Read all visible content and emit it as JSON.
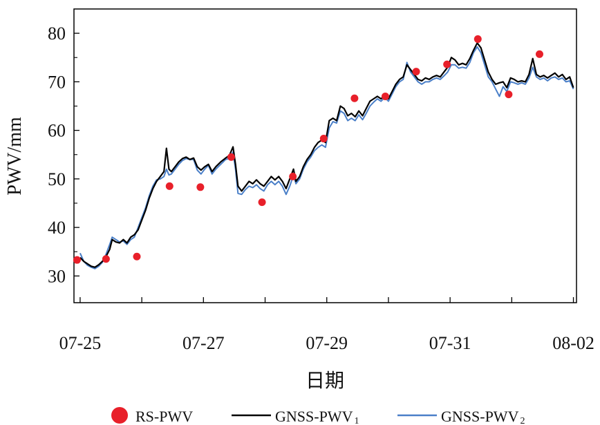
{
  "chart_data": {
    "type": "line",
    "xlabel": "日期",
    "ylabel": "PWV/mm",
    "x_tick_labels": [
      "07-25",
      "07-27",
      "07-29",
      "07-31",
      "08-02"
    ],
    "x_tick_days": [
      0,
      2,
      4,
      6,
      8
    ],
    "x_axis_start_date": "07-25",
    "xlim": [
      -0.1,
      8.05
    ],
    "y_ticks": [
      30,
      40,
      50,
      60,
      70,
      80
    ],
    "ylim": [
      24.5,
      85
    ],
    "series_colors": {
      "RS-PWV": "#e8202a",
      "GNSS-PWV1": "#000000",
      "GNSS-PWV2": "#4a7fc8"
    },
    "legend": {
      "placement": "bottom",
      "entries": [
        {
          "key": "RS-PWV",
          "label": "RS-PWV",
          "sub": "",
          "marker": "dot"
        },
        {
          "key": "GNSS-PWV1",
          "label": "GNSS-PWV",
          "sub": "1",
          "marker": "line"
        },
        {
          "key": "GNSS-PWV2",
          "label": "GNSS-PWV",
          "sub": "2",
          "marker": "line"
        }
      ]
    },
    "series": [
      {
        "name": "RS-PWV",
        "kind": "scatter",
        "points": [
          [
            -0.05,
            33.3
          ],
          [
            0.42,
            33.5
          ],
          [
            0.92,
            34.0
          ],
          [
            1.45,
            48.5
          ],
          [
            1.95,
            48.3
          ],
          [
            2.45,
            54.5
          ],
          [
            2.95,
            45.2
          ],
          [
            3.45,
            50.5
          ],
          [
            3.95,
            58.3
          ],
          [
            4.45,
            66.6
          ],
          [
            4.95,
            67.0
          ],
          [
            5.45,
            72.1
          ],
          [
            5.95,
            73.6
          ],
          [
            6.45,
            78.8
          ],
          [
            6.95,
            67.4
          ],
          [
            7.45,
            75.7
          ]
        ]
      },
      {
        "name": "GNSS-PWV1",
        "kind": "line",
        "points": [
          [
            0.0,
            33.8
          ],
          [
            0.06,
            33.0
          ],
          [
            0.12,
            32.5
          ],
          [
            0.18,
            32.0
          ],
          [
            0.24,
            31.8
          ],
          [
            0.3,
            32.3
          ],
          [
            0.36,
            33.0
          ],
          [
            0.42,
            34.0
          ],
          [
            0.48,
            35.5
          ],
          [
            0.52,
            37.5
          ],
          [
            0.58,
            37.0
          ],
          [
            0.64,
            36.8
          ],
          [
            0.7,
            37.5
          ],
          [
            0.76,
            36.8
          ],
          [
            0.82,
            38.0
          ],
          [
            0.88,
            38.5
          ],
          [
            0.94,
            39.5
          ],
          [
            1.0,
            41.5
          ],
          [
            1.06,
            43.5
          ],
          [
            1.12,
            46.0
          ],
          [
            1.18,
            48.0
          ],
          [
            1.24,
            49.5
          ],
          [
            1.3,
            50.5
          ],
          [
            1.36,
            51.5
          ],
          [
            1.4,
            56.3
          ],
          [
            1.44,
            52.0
          ],
          [
            1.48,
            51.5
          ],
          [
            1.54,
            52.5
          ],
          [
            1.6,
            53.5
          ],
          [
            1.66,
            54.2
          ],
          [
            1.72,
            54.5
          ],
          [
            1.78,
            54.0
          ],
          [
            1.84,
            54.3
          ],
          [
            1.9,
            52.5
          ],
          [
            1.96,
            51.8
          ],
          [
            2.02,
            52.5
          ],
          [
            2.08,
            53.0
          ],
          [
            2.14,
            51.5
          ],
          [
            2.2,
            52.5
          ],
          [
            2.28,
            53.5
          ],
          [
            2.36,
            54.3
          ],
          [
            2.42,
            54.8
          ],
          [
            2.48,
            56.6
          ],
          [
            2.52,
            53.0
          ],
          [
            2.56,
            48.5
          ],
          [
            2.62,
            47.5
          ],
          [
            2.68,
            48.5
          ],
          [
            2.74,
            49.5
          ],
          [
            2.8,
            49.0
          ],
          [
            2.86,
            49.8
          ],
          [
            2.92,
            49.0
          ],
          [
            2.98,
            48.5
          ],
          [
            3.04,
            49.5
          ],
          [
            3.1,
            50.5
          ],
          [
            3.16,
            49.8
          ],
          [
            3.22,
            50.5
          ],
          [
            3.28,
            49.5
          ],
          [
            3.34,
            48.0
          ],
          [
            3.4,
            50.0
          ],
          [
            3.46,
            52.0
          ],
          [
            3.5,
            49.5
          ],
          [
            3.56,
            50.5
          ],
          [
            3.62,
            52.5
          ],
          [
            3.68,
            54.0
          ],
          [
            3.74,
            55.0
          ],
          [
            3.8,
            56.5
          ],
          [
            3.86,
            57.5
          ],
          [
            3.92,
            58.0
          ],
          [
            3.98,
            57.5
          ],
          [
            4.04,
            62.0
          ],
          [
            4.1,
            62.5
          ],
          [
            4.16,
            62.0
          ],
          [
            4.22,
            65.0
          ],
          [
            4.28,
            64.5
          ],
          [
            4.34,
            63.0
          ],
          [
            4.4,
            63.5
          ],
          [
            4.46,
            62.8
          ],
          [
            4.52,
            64.0
          ],
          [
            4.58,
            63.0
          ],
          [
            4.64,
            64.5
          ],
          [
            4.7,
            66.0
          ],
          [
            4.76,
            66.5
          ],
          [
            4.82,
            67.0
          ],
          [
            4.88,
            66.5
          ],
          [
            4.94,
            67.2
          ],
          [
            5.0,
            66.5
          ],
          [
            5.06,
            68.0
          ],
          [
            5.12,
            69.5
          ],
          [
            5.18,
            70.5
          ],
          [
            5.24,
            71.0
          ],
          [
            5.3,
            73.5
          ],
          [
            5.36,
            72.5
          ],
          [
            5.42,
            71.5
          ],
          [
            5.48,
            70.5
          ],
          [
            5.54,
            70.2
          ],
          [
            5.6,
            70.8
          ],
          [
            5.66,
            70.5
          ],
          [
            5.72,
            71.0
          ],
          [
            5.78,
            71.3
          ],
          [
            5.84,
            71.0
          ],
          [
            5.9,
            72.0
          ],
          [
            5.96,
            73.0
          ],
          [
            6.02,
            75.0
          ],
          [
            6.08,
            74.5
          ],
          [
            6.14,
            73.5
          ],
          [
            6.2,
            73.8
          ],
          [
            6.26,
            73.5
          ],
          [
            6.32,
            74.8
          ],
          [
            6.38,
            76.5
          ],
          [
            6.44,
            78.0
          ],
          [
            6.5,
            77.0
          ],
          [
            6.56,
            74.5
          ],
          [
            6.62,
            72.0
          ],
          [
            6.68,
            70.5
          ],
          [
            6.74,
            69.5
          ],
          [
            6.8,
            69.8
          ],
          [
            6.86,
            70.0
          ],
          [
            6.92,
            68.8
          ],
          [
            6.98,
            70.8
          ],
          [
            7.04,
            70.5
          ],
          [
            7.1,
            70.0
          ],
          [
            7.16,
            70.2
          ],
          [
            7.22,
            70.0
          ],
          [
            7.28,
            71.5
          ],
          [
            7.34,
            74.8
          ],
          [
            7.4,
            71.5
          ],
          [
            7.46,
            71.0
          ],
          [
            7.52,
            71.3
          ],
          [
            7.58,
            70.8
          ],
          [
            7.64,
            71.3
          ],
          [
            7.7,
            71.8
          ],
          [
            7.76,
            71.0
          ],
          [
            7.82,
            71.5
          ],
          [
            7.88,
            70.5
          ],
          [
            7.94,
            71.0
          ],
          [
            8.0,
            68.8
          ]
        ]
      },
      {
        "name": "GNSS-PWV2",
        "kind": "line",
        "points": [
          [
            0.0,
            34.7
          ],
          [
            0.06,
            33.0
          ],
          [
            0.12,
            32.2
          ],
          [
            0.18,
            31.8
          ],
          [
            0.24,
            31.5
          ],
          [
            0.3,
            32.0
          ],
          [
            0.36,
            32.8
          ],
          [
            0.42,
            34.5
          ],
          [
            0.48,
            36.5
          ],
          [
            0.52,
            38.0
          ],
          [
            0.58,
            37.5
          ],
          [
            0.64,
            37.0
          ],
          [
            0.7,
            37.2
          ],
          [
            0.76,
            36.5
          ],
          [
            0.82,
            37.5
          ],
          [
            0.88,
            38.0
          ],
          [
            0.94,
            40.0
          ],
          [
            1.0,
            42.0
          ],
          [
            1.06,
            44.0
          ],
          [
            1.12,
            46.5
          ],
          [
            1.18,
            48.5
          ],
          [
            1.24,
            49.8
          ],
          [
            1.3,
            50.0
          ],
          [
            1.36,
            50.5
          ],
          [
            1.4,
            52.0
          ],
          [
            1.44,
            50.8
          ],
          [
            1.48,
            51.0
          ],
          [
            1.54,
            52.0
          ],
          [
            1.6,
            53.0
          ],
          [
            1.66,
            53.8
          ],
          [
            1.72,
            54.2
          ],
          [
            1.78,
            54.0
          ],
          [
            1.84,
            54.0
          ],
          [
            1.9,
            51.8
          ],
          [
            1.96,
            51.0
          ],
          [
            2.02,
            52.0
          ],
          [
            2.08,
            52.8
          ],
          [
            2.14,
            51.0
          ],
          [
            2.2,
            52.0
          ],
          [
            2.28,
            53.0
          ],
          [
            2.36,
            54.0
          ],
          [
            2.42,
            54.2
          ],
          [
            2.48,
            55.5
          ],
          [
            2.52,
            52.0
          ],
          [
            2.56,
            47.0
          ],
          [
            2.62,
            46.8
          ],
          [
            2.68,
            47.8
          ],
          [
            2.74,
            48.5
          ],
          [
            2.8,
            48.2
          ],
          [
            2.86,
            48.8
          ],
          [
            2.92,
            48.0
          ],
          [
            2.98,
            47.5
          ],
          [
            3.04,
            48.8
          ],
          [
            3.1,
            49.5
          ],
          [
            3.16,
            48.8
          ],
          [
            3.22,
            49.5
          ],
          [
            3.28,
            48.5
          ],
          [
            3.34,
            46.8
          ],
          [
            3.4,
            48.5
          ],
          [
            3.46,
            50.8
          ],
          [
            3.5,
            49.0
          ],
          [
            3.56,
            50.0
          ],
          [
            3.62,
            52.0
          ],
          [
            3.68,
            53.5
          ],
          [
            3.74,
            54.5
          ],
          [
            3.8,
            55.8
          ],
          [
            3.86,
            56.5
          ],
          [
            3.92,
            57.0
          ],
          [
            3.98,
            56.5
          ],
          [
            4.04,
            60.5
          ],
          [
            4.1,
            61.8
          ],
          [
            4.16,
            61.5
          ],
          [
            4.22,
            64.0
          ],
          [
            4.28,
            63.5
          ],
          [
            4.34,
            62.0
          ],
          [
            4.4,
            62.5
          ],
          [
            4.46,
            62.0
          ],
          [
            4.52,
            63.2
          ],
          [
            4.58,
            62.2
          ],
          [
            4.64,
            63.5
          ],
          [
            4.7,
            65.0
          ],
          [
            4.76,
            65.8
          ],
          [
            4.82,
            66.5
          ],
          [
            4.88,
            66.0
          ],
          [
            4.94,
            66.8
          ],
          [
            5.0,
            66.0
          ],
          [
            5.06,
            67.5
          ],
          [
            5.12,
            69.0
          ],
          [
            5.18,
            70.0
          ],
          [
            5.24,
            70.5
          ],
          [
            5.3,
            74.0
          ],
          [
            5.36,
            72.0
          ],
          [
            5.42,
            71.0
          ],
          [
            5.48,
            70.0
          ],
          [
            5.54,
            69.5
          ],
          [
            5.6,
            70.0
          ],
          [
            5.66,
            70.0
          ],
          [
            5.72,
            70.5
          ],
          [
            5.78,
            70.8
          ],
          [
            5.84,
            70.5
          ],
          [
            5.9,
            71.2
          ],
          [
            5.96,
            72.0
          ],
          [
            6.02,
            73.5
          ],
          [
            6.08,
            73.5
          ],
          [
            6.14,
            72.8
          ],
          [
            6.2,
            73.0
          ],
          [
            6.26,
            72.8
          ],
          [
            6.32,
            74.0
          ],
          [
            6.38,
            76.0
          ],
          [
            6.44,
            77.2
          ],
          [
            6.5,
            76.0
          ],
          [
            6.56,
            73.5
          ],
          [
            6.62,
            71.0
          ],
          [
            6.68,
            70.0
          ],
          [
            6.74,
            68.5
          ],
          [
            6.8,
            67.0
          ],
          [
            6.86,
            69.0
          ],
          [
            6.92,
            68.0
          ],
          [
            6.98,
            70.0
          ],
          [
            7.04,
            69.8
          ],
          [
            7.1,
            69.5
          ],
          [
            7.16,
            69.8
          ],
          [
            7.22,
            69.5
          ],
          [
            7.28,
            70.8
          ],
          [
            7.34,
            73.0
          ],
          [
            7.4,
            71.0
          ],
          [
            7.46,
            70.5
          ],
          [
            7.52,
            70.8
          ],
          [
            7.58,
            70.2
          ],
          [
            7.64,
            70.8
          ],
          [
            7.7,
            71.0
          ],
          [
            7.76,
            70.5
          ],
          [
            7.82,
            70.8
          ],
          [
            7.88,
            70.0
          ],
          [
            7.94,
            70.2
          ],
          [
            8.0,
            68.5
          ]
        ]
      }
    ]
  }
}
